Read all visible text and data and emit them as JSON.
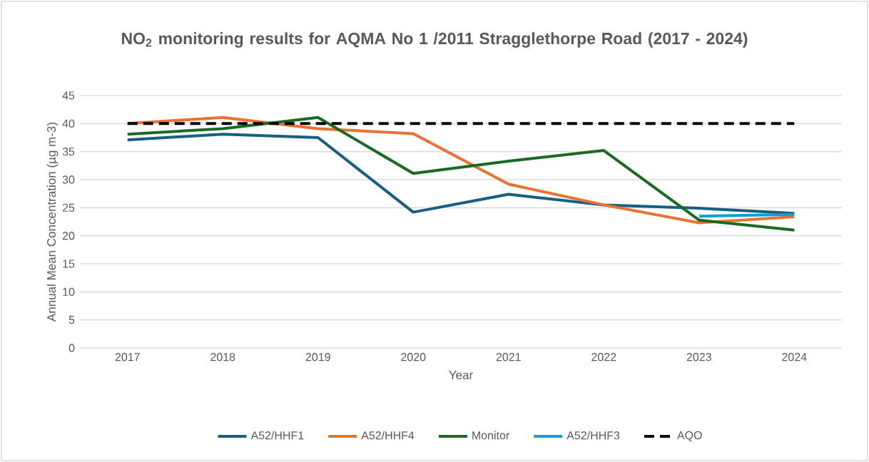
{
  "chart_data": {
    "type": "line",
    "title": "NO$_{2}$ monitoring results for AQMA No 1 /2011 Stragglethorpe Road (2017 - 2024)",
    "xlabel": "Year",
    "ylabel": "Annual Mean Concentration (µg m-3)",
    "categories": [
      "2017",
      "2018",
      "2019",
      "2020",
      "2021",
      "2022",
      "2023",
      "2024"
    ],
    "ylim": [
      0,
      45
    ],
    "yticks": [
      0,
      5,
      10,
      15,
      20,
      25,
      30,
      35,
      40,
      45
    ],
    "grid": "y",
    "legend": "bottom",
    "marker": "none",
    "series": [
      {
        "name": "A52/HHF1",
        "color": "#156082",
        "values": [
          37.1,
          38.1,
          37.5,
          24.2,
          27.4,
          25.5,
          24.9,
          24.0
        ]
      },
      {
        "name": "A52/HHF4",
        "color": "#e97132",
        "values": [
          40.0,
          41.1,
          39.1,
          38.2,
          29.2,
          25.5,
          22.3,
          23.4
        ]
      },
      {
        "name": "Monitor",
        "color": "#196b24",
        "values": [
          38.1,
          39.1,
          41.1,
          31.1,
          33.3,
          35.2,
          22.8,
          21.0
        ]
      },
      {
        "name": "A52/HHF3",
        "color": "#0f9ed5",
        "values": [
          null,
          null,
          null,
          null,
          null,
          null,
          23.5,
          23.8
        ]
      },
      {
        "name": "AQO",
        "color": "#000000",
        "line_style": "dashed",
        "values": [
          40,
          40,
          40,
          40,
          40,
          40,
          40,
          40
        ]
      }
    ]
  }
}
